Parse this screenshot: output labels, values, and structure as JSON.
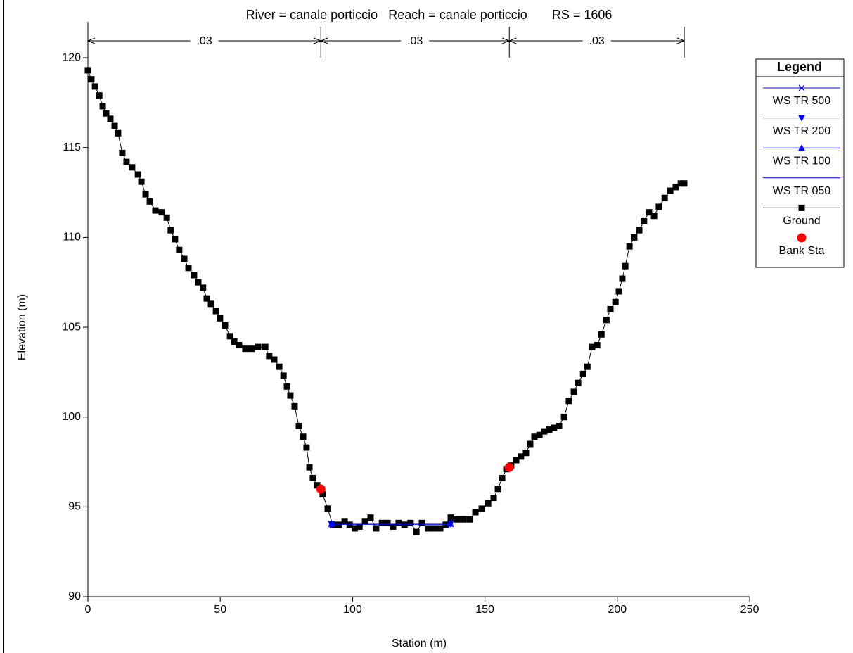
{
  "chart_data": {
    "type": "cross-section",
    "title": "River = canale porticcio   Reach = canale porticcio       RS = 1606",
    "x_label": "Station (m)",
    "y_label": "Elevation (m)",
    "xlim": [
      0,
      250
    ],
    "ylim": [
      90,
      122
    ],
    "xticks": [
      0,
      50,
      100,
      150,
      200,
      250
    ],
    "yticks": [
      90,
      95,
      100,
      105,
      110,
      115,
      120
    ],
    "mannings": {
      "stations": [
        0,
        88,
        159.2,
        225.3
      ],
      "labels": [
        ".03",
        ".03",
        ".03"
      ]
    },
    "legend_title": "Legend",
    "series": [
      {
        "name": "WS TR 500",
        "color": "#0000ff",
        "marker": "x",
        "line": true,
        "x": [
          92,
          137
        ],
        "values": [
          94.05,
          94.05
        ]
      },
      {
        "name": "WS TR 200",
        "color": "#0000ff",
        "marker": "triangle-down",
        "line": true,
        "x": [
          92,
          137
        ],
        "values": [
          94.05,
          94.05
        ]
      },
      {
        "name": "WS TR 100",
        "color": "#0000ff",
        "marker": "triangle-up",
        "line": true,
        "x": [
          92,
          137
        ],
        "values": [
          94.05,
          94.05
        ]
      },
      {
        "name": "WS TR 050",
        "color": "#0000ff",
        "marker": "none",
        "line": true,
        "x": [
          92,
          137
        ],
        "values": [
          94.05,
          94.05
        ]
      },
      {
        "name": "Ground",
        "color": "#000000",
        "marker": "square",
        "line": true,
        "x": [
          0,
          1.3,
          2.7,
          4.3,
          5.6,
          6.9,
          8.5,
          10.1,
          11.4,
          13,
          14.6,
          16.7,
          18.9,
          20.2,
          21.8,
          23.4,
          25.5,
          27.9,
          29.8,
          31.3,
          32.9,
          34.5,
          36.4,
          38,
          40.1,
          41.7,
          43.5,
          44.9,
          46.5,
          48.4,
          49.9,
          51.8,
          53.7,
          55.3,
          57.1,
          59.5,
          61.9,
          64.3,
          67,
          68.5,
          70.4,
          72.3,
          73.9,
          75.2,
          76.5,
          78.1,
          79.7,
          81.3,
          82.6,
          83.7,
          85,
          86.6,
          88.7,
          90.6,
          92.5,
          94.8,
          97,
          98.9,
          100.8,
          102.6,
          104.7,
          106.8,
          108.9,
          111.1,
          113.2,
          115.3,
          117.4,
          119.6,
          121.9,
          124.1,
          126.2,
          128.6,
          130.7,
          133.1,
          135.2,
          137.1,
          139.5,
          141.9,
          144.3,
          146.4,
          148.8,
          151.2,
          153.3,
          154.9,
          156.5,
          158.1,
          159.9,
          161.8,
          163.6,
          165.5,
          167.1,
          168.7,
          170.6,
          172.4,
          174.3,
          176.1,
          178,
          179.9,
          181.7,
          183.6,
          185.2,
          187.1,
          188.7,
          190.5,
          192.4,
          194,
          195.9,
          197.4,
          199.3,
          200.6,
          201.9,
          203,
          204.6,
          206.4,
          208.3,
          210.1,
          212,
          213.9,
          215.7,
          217.9,
          220,
          222.1,
          224,
          225.3
        ],
        "values": [
          119.3,
          118.8,
          118.4,
          117.9,
          117.3,
          116.9,
          116.6,
          116.2,
          115.8,
          114.7,
          114.2,
          113.9,
          113.5,
          113.1,
          112.4,
          112,
          111.5,
          111.4,
          111.1,
          110.4,
          109.9,
          109.3,
          108.8,
          108.3,
          107.9,
          107.5,
          107.2,
          106.6,
          106.3,
          105.9,
          105.5,
          105.1,
          104.5,
          104.2,
          104,
          103.8,
          103.8,
          103.9,
          103.9,
          103.4,
          103.2,
          102.8,
          102.3,
          101.7,
          101.2,
          100.6,
          99.5,
          98.9,
          98.3,
          97.2,
          96.6,
          96.2,
          95.7,
          94.9,
          94,
          94,
          94.2,
          94,
          93.8,
          93.9,
          94.2,
          94.4,
          93.8,
          94.1,
          94.1,
          93.9,
          94.1,
          94,
          94.1,
          93.6,
          94.1,
          93.8,
          93.8,
          93.8,
          94,
          94.4,
          94.3,
          94.3,
          94.3,
          94.7,
          94.9,
          95.2,
          95.5,
          96,
          96.6,
          97.1,
          97.3,
          97.6,
          97.8,
          98,
          98.5,
          98.9,
          99,
          99.2,
          99.3,
          99.4,
          99.5,
          100,
          100.9,
          101.4,
          101.9,
          102.4,
          102.8,
          103.9,
          104,
          104.6,
          105.4,
          106,
          106.4,
          107,
          107.7,
          108.4,
          109.5,
          110,
          110.4,
          110.9,
          111.4,
          111.2,
          111.7,
          112.2,
          112.6,
          112.8,
          113,
          113
        ]
      },
      {
        "name": "Bank Sta",
        "color": "#ff0000",
        "marker": "circle",
        "line": false,
        "x": [
          88,
          159.2
        ],
        "values": [
          96.0,
          97.2
        ]
      }
    ]
  }
}
